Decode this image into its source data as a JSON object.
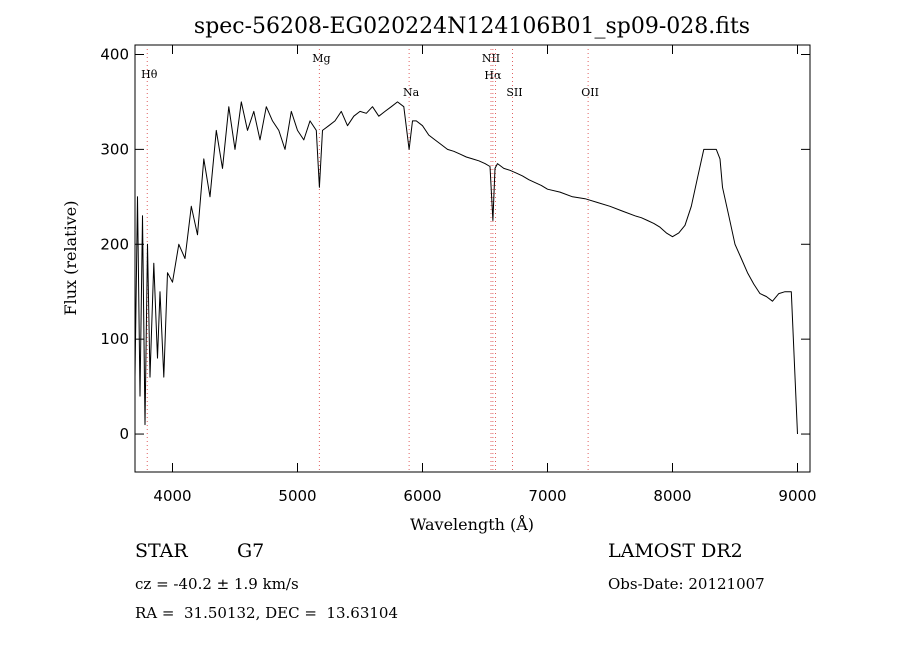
{
  "chart_data": {
    "type": "line",
    "title": "spec-56208-EG020224N124106B01_sp09-028.fits",
    "xlabel": "Wavelength (Å)",
    "ylabel": "Flux (relative)",
    "xlim": [
      3700,
      9100
    ],
    "ylim": [
      -40,
      410
    ],
    "xticks": [
      4000,
      5000,
      6000,
      7000,
      8000,
      9000
    ],
    "yticks": [
      0,
      100,
      200,
      300,
      400
    ],
    "grid": false,
    "line_color": "#000000",
    "marker_color": "#e06060",
    "spectral_lines": [
      {
        "name": "Hθ",
        "wavelength": 3798
      },
      {
        "name": "Mg",
        "wavelength": 5175
      },
      {
        "name": "Na",
        "wavelength": 5893
      },
      {
        "name": "NII",
        "wavelength": 6548
      },
      {
        "name": "Hα",
        "wavelength": 6563
      },
      {
        "name": "NII",
        "wavelength": 6584
      },
      {
        "name": "SII",
        "wavelength": 6720
      },
      {
        "name": "OII",
        "wavelength": 7325
      }
    ],
    "series": [
      {
        "x": [
          3700,
          3720,
          3740,
          3760,
          3780,
          3800,
          3820,
          3850,
          3880,
          3900,
          3930,
          3960,
          4000,
          4050,
          4100,
          4150,
          4200,
          4250,
          4300,
          4350,
          4400,
          4450,
          4500,
          4550,
          4600,
          4650,
          4700,
          4750,
          4800,
          4850,
          4900,
          4950,
          5000,
          5050,
          5100,
          5150,
          5175,
          5200,
          5250,
          5300,
          5350,
          5400,
          5450,
          5500,
          5550,
          5600,
          5650,
          5700,
          5750,
          5800,
          5850,
          5893,
          5920,
          5950,
          6000,
          6050,
          6100,
          6150,
          6200,
          6250,
          6300,
          6350,
          6400,
          6450,
          6500,
          6540,
          6563,
          6580,
          6600,
          6650,
          6700,
          6750,
          6800,
          6850,
          6900,
          6950,
          7000,
          7100,
          7200,
          7300,
          7400,
          7500,
          7600,
          7700,
          7750,
          7800,
          7850,
          7900,
          7950,
          8000,
          8050,
          8100,
          8150,
          8200,
          8250,
          8300,
          8350,
          8380,
          8400,
          8450,
          8500,
          8550,
          8600,
          8650,
          8700,
          8750,
          8800,
          8850,
          8900,
          8950,
          9000
        ],
        "y": [
          60,
          250,
          40,
          230,
          10,
          200,
          60,
          180,
          80,
          150,
          60,
          170,
          160,
          200,
          185,
          240,
          210,
          290,
          250,
          320,
          280,
          345,
          300,
          350,
          320,
          340,
          310,
          345,
          330,
          320,
          300,
          340,
          320,
          310,
          330,
          320,
          260,
          320,
          325,
          330,
          340,
          325,
          335,
          340,
          338,
          345,
          335,
          340,
          345,
          350,
          345,
          300,
          330,
          330,
          325,
          315,
          310,
          305,
          300,
          298,
          295,
          292,
          290,
          288,
          285,
          282,
          225,
          280,
          285,
          280,
          278,
          275,
          272,
          268,
          265,
          262,
          258,
          255,
          250,
          248,
          244,
          240,
          235,
          230,
          228,
          225,
          222,
          218,
          212,
          208,
          212,
          220,
          240,
          270,
          300,
          300,
          300,
          290,
          260,
          230,
          200,
          185,
          170,
          158,
          148,
          145,
          140,
          148,
          150,
          150,
          0
        ]
      }
    ]
  },
  "info": {
    "obj_class": "STAR",
    "obj_subclass": "G7",
    "cz_line": "cz = -40.2 ± 1.9 km/s",
    "coord_line": "RA =  31.50132, DEC =  13.63104",
    "survey": "LAMOST DR2",
    "obs_date_line": "Obs-Date: 20121007"
  }
}
